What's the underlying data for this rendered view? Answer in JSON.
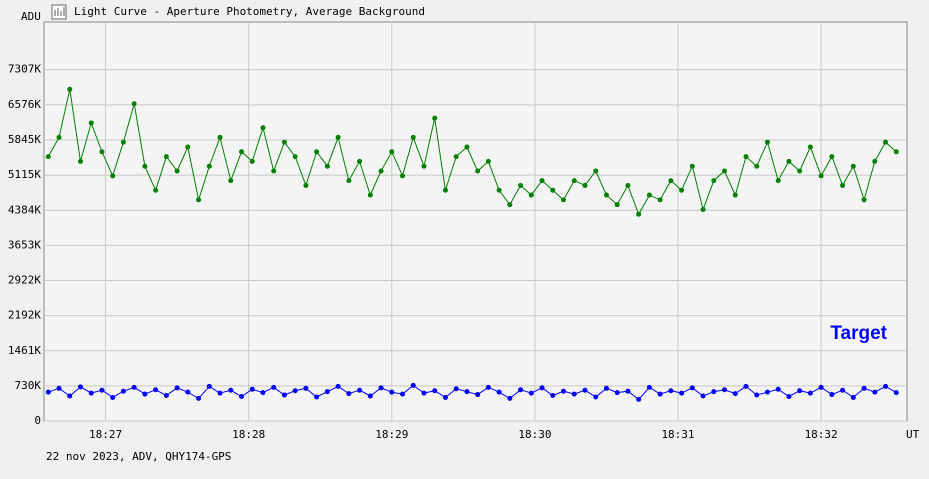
{
  "chart_data": {
    "type": "line",
    "title": "Light Curve - Aperture Photometry, Average Background",
    "ylabel": "ADU",
    "xlabel": "UT",
    "footer": "22 nov 2023, ADV, QHY174-GPS",
    "grid": true,
    "legend": "lower right",
    "xlim": [
      26.57,
      32.6
    ],
    "xticks": [
      {
        "value": 27,
        "label": "18:27"
      },
      {
        "value": 28,
        "label": "18:28"
      },
      {
        "value": 29,
        "label": "18:29"
      },
      {
        "value": 30,
        "label": "18:30"
      },
      {
        "value": 31,
        "label": "18:31"
      },
      {
        "value": 32,
        "label": "18:32"
      }
    ],
    "ylim": [
      0,
      8300
    ],
    "yticks": [
      0,
      {
        "value": 730,
        "label": "730K"
      },
      {
        "value": 1461,
        "label": "1461K"
      },
      {
        "value": 2192,
        "label": "2192K"
      },
      {
        "value": 2922,
        "label": "2922K"
      },
      {
        "value": 3653,
        "label": "3653K"
      },
      {
        "value": 4384,
        "label": "4384K"
      },
      {
        "value": 5115,
        "label": "5115K"
      },
      {
        "value": 5845,
        "label": "5845K"
      },
      {
        "value": 6576,
        "label": "6576K"
      },
      {
        "value": 7307,
        "label": "7307K"
      }
    ],
    "x": [
      26.6,
      26.675,
      26.75,
      26.825,
      26.9,
      26.975,
      27.05,
      27.125,
      27.2,
      27.275,
      27.35,
      27.425,
      27.5,
      27.575,
      27.65,
      27.725,
      27.8,
      27.875,
      27.95,
      28.025,
      28.1,
      28.175,
      28.25,
      28.325,
      28.4,
      28.475,
      28.55,
      28.625,
      28.7,
      28.775,
      28.85,
      28.925,
      29.0,
      29.075,
      29.15,
      29.225,
      29.3,
      29.375,
      29.45,
      29.525,
      29.6,
      29.675,
      29.75,
      29.825,
      29.9,
      29.975,
      30.05,
      30.125,
      30.2,
      30.275,
      30.35,
      30.425,
      30.5,
      30.575,
      30.65,
      30.725,
      30.8,
      30.875,
      30.95,
      31.025,
      31.1,
      31.175,
      31.25,
      31.325,
      31.4,
      31.475,
      31.55,
      31.625,
      31.7,
      31.775,
      31.85,
      31.925,
      32.0,
      32.075,
      32.15,
      32.225,
      32.3,
      32.375,
      32.45,
      32.525
    ],
    "series": [
      {
        "color": "#008000",
        "values": [
          5500,
          5900,
          6900,
          5400,
          6200,
          5600,
          5100,
          5800,
          6600,
          5300,
          4800,
          5500,
          5200,
          5700,
          4600,
          5300,
          5900,
          5000,
          5600,
          5400,
          6100,
          5200,
          5800,
          5500,
          4900,
          5600,
          5300,
          5900,
          5000,
          5400,
          4700,
          5200,
          5600,
          5100,
          5900,
          5300,
          6300,
          4800,
          5500,
          5700,
          5200,
          5400,
          4800,
          4500,
          4900,
          4700,
          5000,
          4800,
          4600,
          5000,
          4900,
          5200,
          4700,
          4500,
          4900,
          4300,
          4700,
          4600,
          5000,
          4800,
          5300,
          4400,
          5000,
          5200,
          4700,
          5500,
          5300,
          5800,
          5000,
          5400,
          5200,
          5700,
          5100,
          5500,
          4900,
          5300,
          4600,
          5400,
          5800,
          5600
        ]
      },
      {
        "name": "Target",
        "color": "#0000ff",
        "values": [
          600,
          680,
          520,
          710,
          580,
          640,
          490,
          620,
          700,
          560,
          650,
          530,
          690,
          600,
          470,
          720,
          580,
          640,
          510,
          660,
          590,
          700,
          540,
          630,
          680,
          500,
          610,
          720,
          570,
          640,
          520,
          690,
          600,
          560,
          740,
          580,
          630,
          490,
          670,
          610,
          550,
          700,
          600,
          470,
          650,
          580,
          690,
          530,
          620,
          560,
          640,
          500,
          680,
          590,
          620,
          450,
          700,
          560,
          630,
          580,
          690,
          520,
          610,
          650,
          570,
          720,
          540,
          600,
          660,
          510,
          630,
          580,
          700,
          550,
          640,
          490,
          680,
          600,
          720,
          590
        ]
      }
    ]
  }
}
